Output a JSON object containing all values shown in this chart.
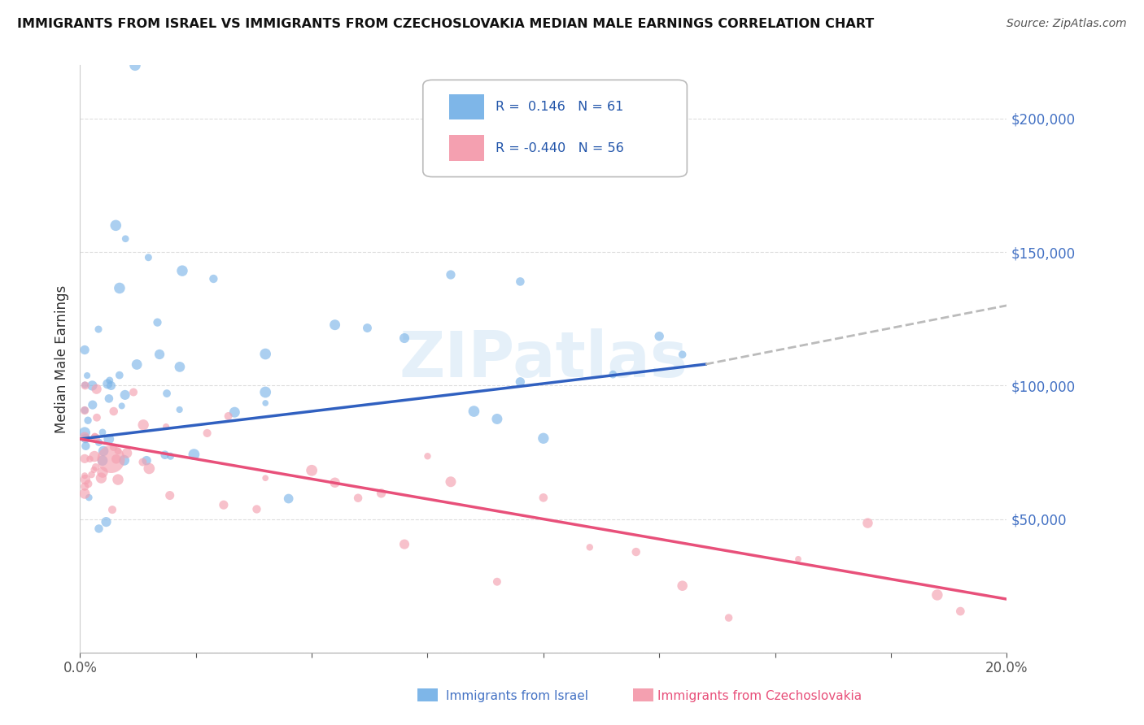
{
  "title": "IMMIGRANTS FROM ISRAEL VS IMMIGRANTS FROM CZECHOSLOVAKIA MEDIAN MALE EARNINGS CORRELATION CHART",
  "source": "Source: ZipAtlas.com",
  "ylabel": "Median Male Earnings",
  "xlim": [
    0.0,
    0.2
  ],
  "ylim": [
    0,
    220000
  ],
  "color_israel": "#7EB6E8",
  "color_czech": "#F4A0B0",
  "line_color_israel": "#3060C0",
  "line_color_czech": "#E8507A",
  "background_color": "#FFFFFF",
  "grid_color": "#DDDDDD",
  "watermark": "ZIPatlas",
  "israel_line_x0": 0.0,
  "israel_line_y0": 80000,
  "israel_line_x1": 0.135,
  "israel_line_y1": 108000,
  "israel_line_dash_x1": 0.2,
  "israel_line_dash_y1": 130000,
  "czech_line_x0": 0.0,
  "czech_line_y0": 80000,
  "czech_line_x1": 0.2,
  "czech_line_y1": 20000
}
